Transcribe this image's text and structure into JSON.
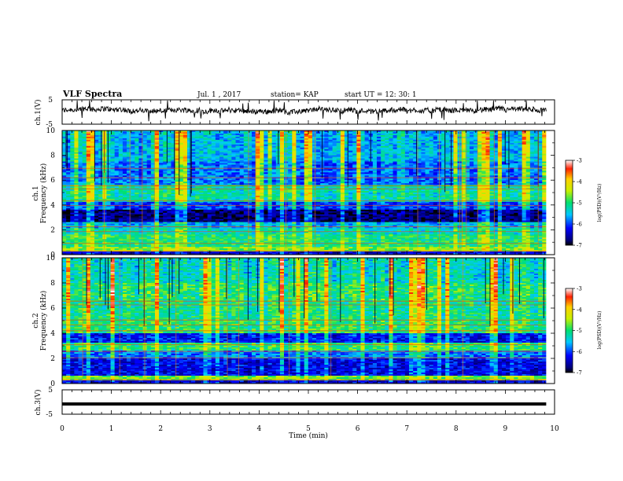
{
  "header": {
    "title": "VLF Spectra",
    "date": "Jul. 1 , 2017",
    "station": "station= KAP",
    "start_ut": "start UT = 12: 30: 1"
  },
  "chart_data": [
    {
      "type": "line",
      "name": "ch1-waveform",
      "ylabel": "ch.1(V)",
      "ylim": [
        -5,
        5
      ],
      "yticks": [
        "5",
        "-5"
      ],
      "x_range_min": [
        0,
        9.83
      ],
      "baseline_v": 0.5,
      "amplitude_v": 2.2,
      "color": "#000000"
    },
    {
      "type": "heatmap",
      "name": "ch1-spectrogram",
      "ylabel": "ch.1\nFrequency (kHz)",
      "ylim": [
        0,
        10
      ],
      "yticks": [
        "0",
        "2",
        "4",
        "6",
        "8",
        "10"
      ],
      "x_range_min": [
        0,
        9.83
      ],
      "colorbar": {
        "label": "log(PSD)(V²/Hz)",
        "ticks": [
          "-3",
          "-4",
          "-5",
          "-6",
          "-7"
        ],
        "range": [
          -7,
          -3
        ]
      },
      "bands_khz_logpsd": [
        [
          0.0,
          0.2,
          -6.4
        ],
        [
          0.2,
          0.6,
          -4.6
        ],
        [
          0.6,
          1.6,
          -5.0
        ],
        [
          1.6,
          2.1,
          -5.3
        ],
        [
          2.1,
          2.6,
          -5.6
        ],
        [
          2.6,
          3.6,
          -6.7
        ],
        [
          3.6,
          4.3,
          -6.0
        ],
        [
          4.3,
          5.6,
          -5.2
        ],
        [
          5.6,
          7.5,
          -5.8
        ],
        [
          7.5,
          10.0,
          -5.5
        ]
      ],
      "lines_khz": [
        0.3,
        0.9,
        1.85,
        2.25,
        3.95,
        4.35,
        5.3,
        5.55,
        6.2,
        6.95
      ]
    },
    {
      "type": "heatmap",
      "name": "ch2-spectrogram",
      "ylabel": "ch.2\nFrequency (kHz)",
      "ylim": [
        0,
        10
      ],
      "yticks": [
        "0",
        "2",
        "4",
        "6",
        "8",
        "10"
      ],
      "x_range_min": [
        0,
        9.83
      ],
      "colorbar": {
        "label": "log(PSD)(V²/Hz)",
        "ticks": [
          "-3",
          "-4",
          "-5",
          "-6",
          "-7"
        ],
        "range": [
          -7,
          -3
        ]
      },
      "bands_khz_logpsd": [
        [
          0.0,
          0.2,
          -6.4
        ],
        [
          0.2,
          0.6,
          -4.7
        ],
        [
          0.6,
          2.0,
          -6.3
        ],
        [
          2.0,
          2.6,
          -5.8
        ],
        [
          2.6,
          3.3,
          -5.0
        ],
        [
          3.3,
          4.0,
          -6.2
        ],
        [
          4.0,
          5.0,
          -5.0
        ],
        [
          5.0,
          6.6,
          -5.1
        ],
        [
          6.6,
          8.0,
          -5.0
        ],
        [
          8.0,
          10.0,
          -5.3
        ]
      ],
      "lines_khz": [
        0.3,
        2.05,
        2.55,
        3.1,
        4.2,
        4.65,
        5.05,
        6.25,
        6.55
      ]
    },
    {
      "type": "line",
      "name": "ch3-waveform",
      "ylabel": "ch.3(V)",
      "ylim": [
        -5,
        5
      ],
      "yticks": [
        "5",
        "-5"
      ],
      "x_range_min": [
        0,
        9.83
      ],
      "constant_v": -0.8,
      "color": "#000000"
    }
  ],
  "xaxis": {
    "label": "Time (min)",
    "range": [
      0,
      10
    ],
    "ticks": [
      "0",
      "1",
      "2",
      "3",
      "4",
      "5",
      "6",
      "7",
      "8",
      "9",
      "10"
    ]
  },
  "colors": {
    "line": "#000000",
    "background": "#ffffff"
  }
}
